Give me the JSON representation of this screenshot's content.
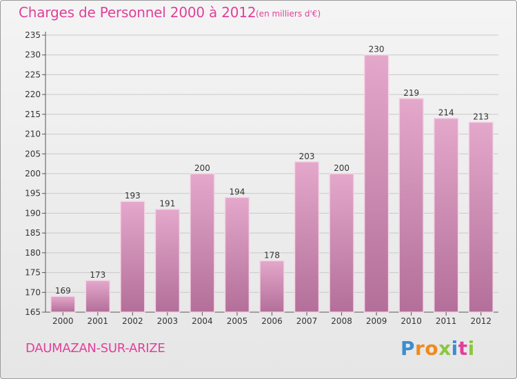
{
  "chart_title": "Charges de Personnel 2000 à 2012",
  "chart_subtitle": "(en milliers d'€)",
  "town_name": "DAUMAZAN-SUR-ARIZE",
  "logo": {
    "text": "Proxiti",
    "letters": [
      {
        "ch": "P",
        "color": "#3a8fd0"
      },
      {
        "ch": "r",
        "color": "#f08a1c"
      },
      {
        "ch": "o",
        "color": "#f08a1c"
      },
      {
        "ch": "x",
        "color": "#8cc63f"
      },
      {
        "ch": "i",
        "color": "#3a8fd0"
      },
      {
        "ch": "t",
        "color": "#e0409a"
      },
      {
        "ch": "i",
        "color": "#8cc63f"
      }
    ]
  },
  "colors": {
    "accent": "#e0409a",
    "bar_top": "#e4a8cb",
    "bar_bottom": "#b36f99",
    "grid": "#c8c8c8"
  },
  "chart_data": {
    "type": "bar",
    "categories": [
      "2000",
      "2001",
      "2002",
      "2003",
      "2004",
      "2005",
      "2006",
      "2007",
      "2008",
      "2009",
      "2010",
      "2011",
      "2012"
    ],
    "values": [
      169,
      173,
      193,
      191,
      200,
      194,
      178,
      203,
      200,
      230,
      219,
      214,
      213
    ],
    "ylim": [
      165,
      235
    ],
    "yticks": [
      165,
      170,
      175,
      180,
      185,
      190,
      195,
      200,
      205,
      210,
      215,
      220,
      225,
      230,
      235
    ],
    "grid": true,
    "xlabel": "",
    "ylabel": ""
  }
}
